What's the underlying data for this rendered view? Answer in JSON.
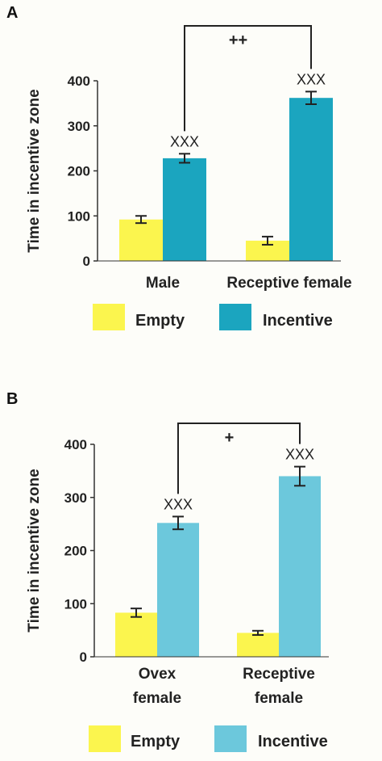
{
  "chart_data": [
    {
      "panel": "A",
      "type": "bar",
      "ylabel": "Time in incentive zone",
      "ylim": [
        0,
        400
      ],
      "yticks": [
        "0",
        "100",
        "200",
        "300",
        "400"
      ],
      "categories": [
        [
          "Male"
        ],
        [
          "Receptive female"
        ]
      ],
      "series": [
        {
          "name": "Empty",
          "color": "#fbf54e",
          "values": [
            92,
            45
          ],
          "errors": [
            8,
            9
          ]
        },
        {
          "name": "Incentive",
          "color": "#1ba5bf",
          "values": [
            228,
            362
          ],
          "errors": [
            10,
            14
          ]
        }
      ],
      "annotations": [
        "XXX",
        "XXX"
      ],
      "comparison": "++"
    },
    {
      "panel": "B",
      "type": "bar",
      "ylabel": "Time in  incentive zone",
      "ylim": [
        0,
        400
      ],
      "yticks": [
        "0",
        "100",
        "200",
        "300",
        "400"
      ],
      "categories": [
        [
          "Ovex",
          "female"
        ],
        [
          "Receptive",
          "female"
        ]
      ],
      "series": [
        {
          "name": "Empty",
          "color": "#fbf54e",
          "values": [
            83,
            45
          ],
          "errors": [
            8,
            4
          ]
        },
        {
          "name": "Incentive",
          "color": "#6cc8dc",
          "values": [
            252,
            340
          ],
          "errors": [
            12,
            18
          ]
        }
      ],
      "annotations": [
        "XXX",
        "XXX"
      ],
      "comparison": "+"
    }
  ]
}
